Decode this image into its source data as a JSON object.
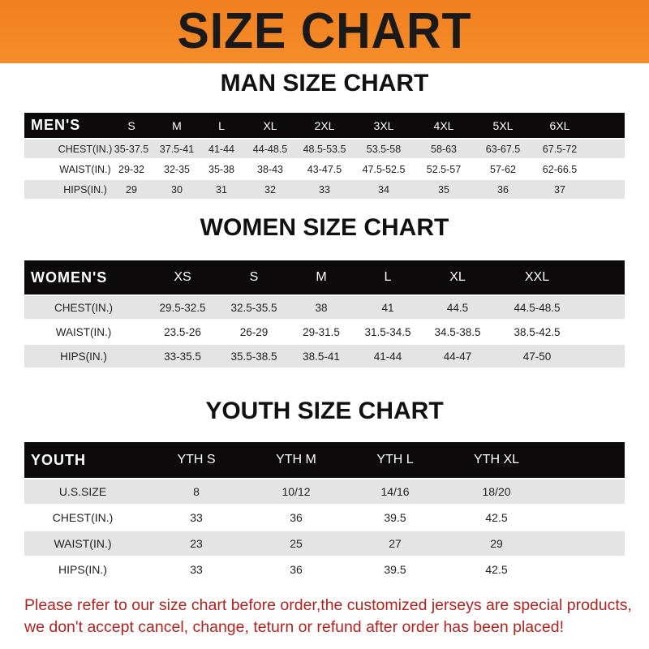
{
  "banner_title": "SIZE CHART",
  "tables": [
    {
      "title": "MAN SIZE CHART",
      "header_label": "MEN'S",
      "sizes": [
        "S",
        "M",
        "L",
        "XL",
        "2XL",
        "3XL",
        "4XL",
        "5XL",
        "6XL"
      ],
      "rows": [
        {
          "label": "CHEST(IN.)",
          "values": [
            "35-37.5",
            "37.5-41",
            "41-44",
            "44-48.5",
            "48.5-53.5",
            "53.5-58",
            "58-63",
            "63-67.5",
            "67.5-72"
          ]
        },
        {
          "label": "WAIST(IN.)",
          "values": [
            "29-32",
            "32-35",
            "35-38",
            "38-43",
            "43-47.5",
            "47.5-52.5",
            "52.5-57",
            "57-62",
            "62-66.5"
          ]
        },
        {
          "label": "HIPS(IN.)",
          "values": [
            "29",
            "30",
            "31",
            "32",
            "33",
            "34",
            "35",
            "36",
            "37"
          ]
        }
      ]
    },
    {
      "title": "WOMEN SIZE CHART",
      "header_label": "WOMEN'S",
      "sizes": [
        "XS",
        "S",
        "M",
        "L",
        "XL",
        "XXL"
      ],
      "rows": [
        {
          "label": "CHEST(IN.)",
          "values": [
            "29.5-32.5",
            "32.5-35.5",
            "38",
            "41",
            "44.5",
            "44.5-48.5"
          ]
        },
        {
          "label": "WAIST(IN.)",
          "values": [
            "23.5-26",
            "26-29",
            "29-31.5",
            "31.5-34.5",
            "34.5-38.5",
            "38.5-42.5"
          ]
        },
        {
          "label": "HIPS(IN.)",
          "values": [
            "33-35.5",
            "35.5-38.5",
            "38.5-41",
            "41-44",
            "44-47",
            "47-50"
          ]
        }
      ]
    },
    {
      "title": "YOUTH SIZE CHART",
      "header_label": "YOUTH",
      "sizes": [
        "YTH S",
        "YTH M",
        "YTH L",
        "YTH XL"
      ],
      "rows": [
        {
          "label": "U.S.SIZE",
          "values": [
            "8",
            "10/12",
            "14/16",
            "18/20"
          ]
        },
        {
          "label": "CHEST(IN.)",
          "values": [
            "33",
            "36",
            "39.5",
            "42.5"
          ]
        },
        {
          "label": "WAIST(IN.)",
          "values": [
            "23",
            "25",
            "27",
            "29"
          ]
        },
        {
          "label": "HIPS(IN.)",
          "values": [
            "33",
            "36",
            "39.5",
            "42.5"
          ]
        }
      ]
    }
  ],
  "note_line1": "Please refer to our size chart before order,the customized jerseys are special products,",
  "note_line2": "we don't accept cancel, change, teturn or refund after order has been placed!",
  "colors": {
    "banner": "#f07f1e",
    "header_row": "#0c0a0a",
    "note": "#b3221e"
  }
}
